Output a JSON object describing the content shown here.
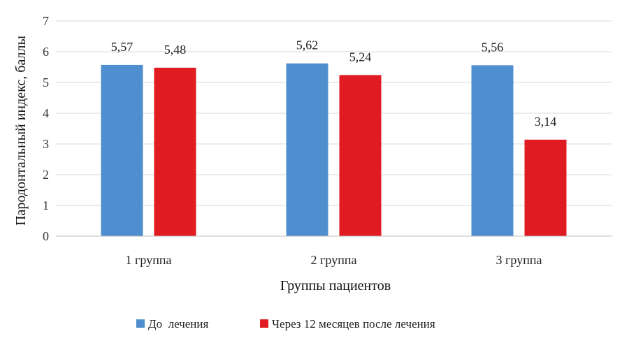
{
  "chart_data": {
    "type": "bar",
    "title": "",
    "xlabel": "Группы пациентов",
    "ylabel": "Пародонтальный индекс, баллы",
    "categories": [
      "1 группа",
      "2 группа",
      "3 группа"
    ],
    "ylim": [
      0,
      7
    ],
    "yticks": [
      0,
      1,
      2,
      3,
      4,
      5,
      6,
      7
    ],
    "grid": true,
    "legend_position": "bottom",
    "series": [
      {
        "name": "До  лечения",
        "color": "#4f8fcf",
        "values": [
          5.57,
          5.62,
          5.56
        ],
        "labels": [
          "5,57",
          "5,62",
          "5,56"
        ]
      },
      {
        "name": "Через 12 месяцев после лечения",
        "color": "#e11b22",
        "values": [
          5.48,
          5.24,
          3.14
        ],
        "labels": [
          "5,48",
          "5,24",
          "3,14"
        ]
      }
    ]
  }
}
